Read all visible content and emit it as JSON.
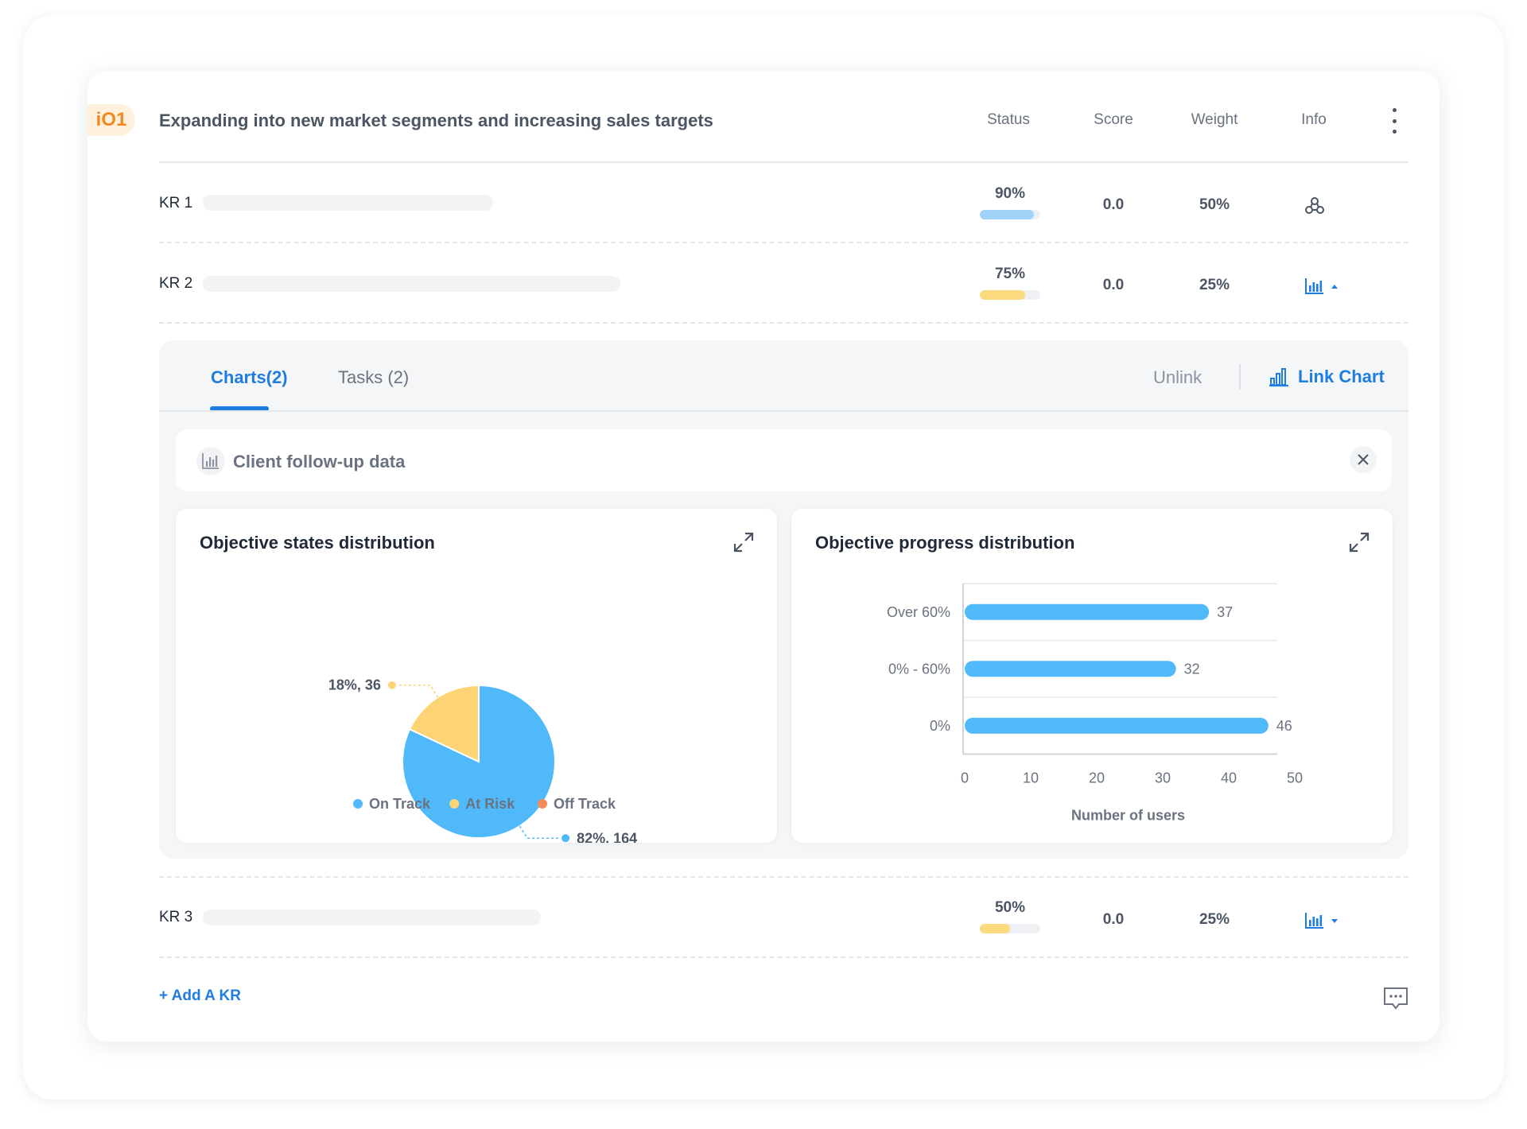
{
  "objective": {
    "badge": "iO1",
    "title": "Expanding into new market segments and increasing sales targets"
  },
  "columns": {
    "status": "Status",
    "score": "Score",
    "weight": "Weight",
    "info": "Info"
  },
  "key_results": [
    {
      "label": "KR 1",
      "status_pct": "90%",
      "status_fraction": 0.9,
      "status_color": "#9fd3f7",
      "score": "0.0",
      "weight": "50%",
      "info_icon": "nodes-icon"
    },
    {
      "label": "KR 2",
      "status_pct": "75%",
      "status_fraction": 0.75,
      "status_color": "#fbd97e",
      "score": "0.0",
      "weight": "25%",
      "info_icon": "bar-chart-icon"
    },
    {
      "label": "KR 3",
      "status_pct": "50%",
      "status_fraction": 0.5,
      "status_color": "#fbd97e",
      "score": "0.0",
      "weight": "25%",
      "info_icon": "bar-chart-icon"
    }
  ],
  "panel": {
    "tabs": [
      {
        "label": "Charts(2)"
      },
      {
        "label": "Tasks (2)"
      }
    ],
    "unlink_label": "Unlink",
    "link_chart_label": "Link Chart",
    "data_card_title": "Client follow-up data"
  },
  "chart_data": [
    {
      "type": "pie",
      "title": "Objective states distribution",
      "slices": [
        {
          "name": "On Track",
          "percent": 82,
          "value": 164,
          "label": "82%, 164",
          "color": "#4fb9f9"
        },
        {
          "name": "At Risk",
          "percent": 18,
          "value": 36,
          "label": "18%, 36",
          "color": "#fdd475"
        },
        {
          "name": "Off Track",
          "percent": 0,
          "value": 0,
          "color": "#f38b5b"
        }
      ],
      "legend": [
        "On Track",
        "At Risk",
        "Off Track"
      ],
      "legend_position": "bottom"
    },
    {
      "type": "bar",
      "orientation": "horizontal",
      "title": "Objective progress distribution",
      "categories": [
        "Over 60%",
        "0% - 60%",
        "0%"
      ],
      "values": [
        37,
        32,
        46
      ],
      "xlabel": "Number of users",
      "xlim": [
        0,
        50
      ],
      "xticks": [
        "0",
        "10",
        "20",
        "30",
        "40",
        "50"
      ],
      "bar_color": "#4fb9f9",
      "grid": true
    }
  ],
  "footer": {
    "add_kr_label": "+ Add A KR"
  }
}
